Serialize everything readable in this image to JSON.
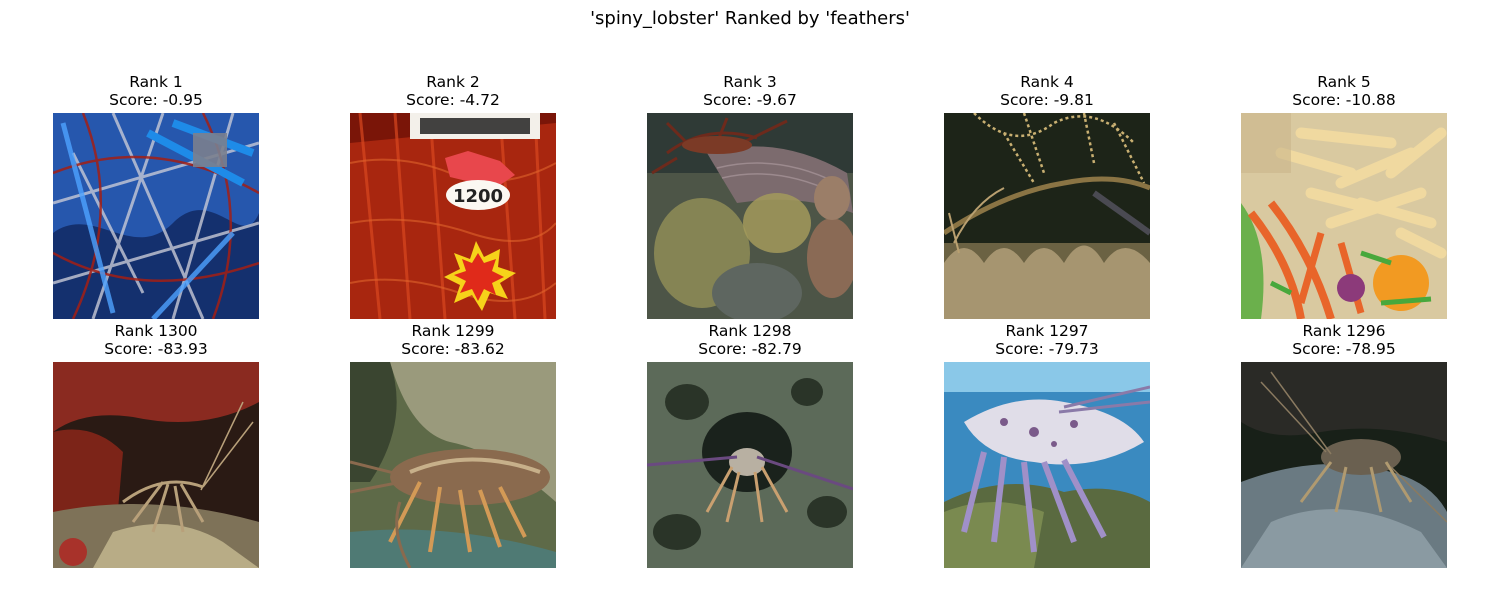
{
  "figure": {
    "title": "'spiny_lobster' Ranked by 'feathers'"
  },
  "top_row": [
    {
      "rank": "Rank 1",
      "score": "Score: -0.95",
      "thumbnail": "lobster-trap-blue-net-image"
    },
    {
      "rank": "Rank 2",
      "score": "Score: -4.72",
      "thumbnail": "red-lobsters-market-sign-image",
      "sign_text": "1200"
    },
    {
      "rank": "Rank 3",
      "score": "Score: -9.67",
      "thumbnail": "lobster-coral-reef-image"
    },
    {
      "rank": "Rank 4",
      "score": "Score: -9.81",
      "thumbnail": "lobster-feather-stars-image"
    },
    {
      "rank": "Rank 5",
      "score": "Score: -10.88",
      "thumbnail": "fries-salad-food-image"
    }
  ],
  "bottom_row": [
    {
      "rank": "Rank 1300",
      "score": "Score: -83.93",
      "thumbnail": "lobster-under-red-reef-ledge-image"
    },
    {
      "rank": "Rank 1299",
      "score": "Score: -83.62",
      "thumbnail": "lobster-rock-crevice-image"
    },
    {
      "rank": "Rank 1298",
      "score": "Score: -82.79",
      "thumbnail": "lobster-reef-hole-image"
    },
    {
      "rank": "Rank 1297",
      "score": "Score: -79.73",
      "thumbnail": "lobster-aquarium-blue-water-image"
    },
    {
      "rank": "Rank 1296",
      "score": "Score: -78.95",
      "thumbnail": "lobster-dark-rock-image"
    }
  ]
}
